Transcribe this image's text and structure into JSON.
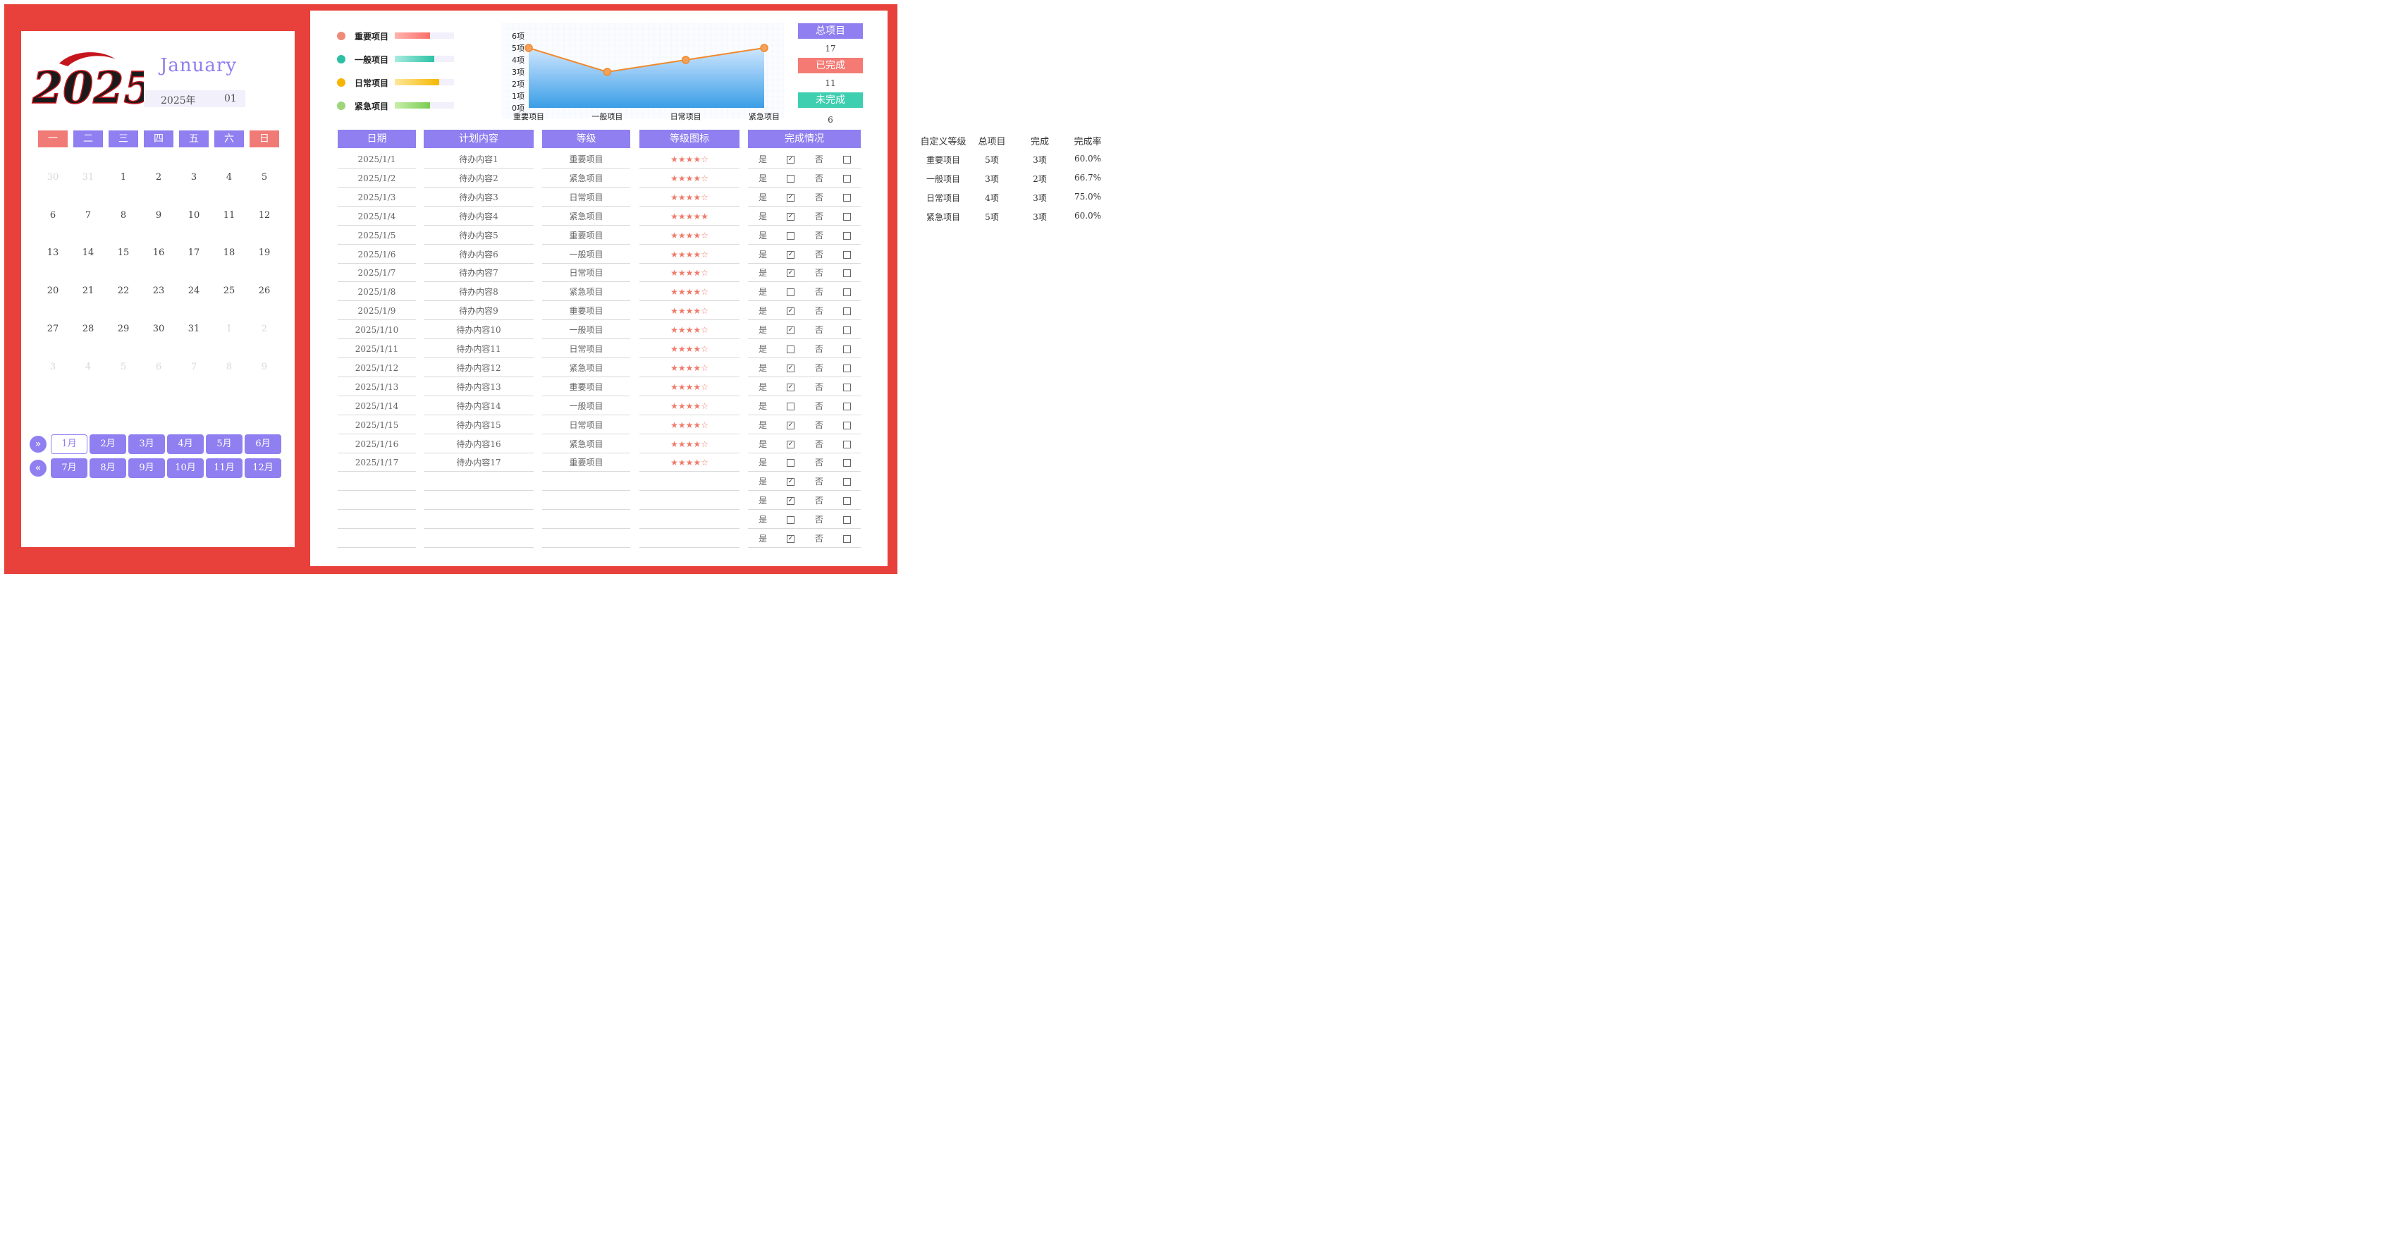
{
  "calendar": {
    "logo_text": "2025",
    "month_name": "January",
    "year_label": "2025年",
    "month_num": "01",
    "weekdays": [
      "一",
      "二",
      "三",
      "四",
      "五",
      "六",
      "日"
    ],
    "weeks": [
      [
        {
          "d": "30",
          "dim": true
        },
        {
          "d": "31",
          "dim": true
        },
        {
          "d": "1"
        },
        {
          "d": "2"
        },
        {
          "d": "3"
        },
        {
          "d": "4"
        },
        {
          "d": "5"
        }
      ],
      [
        {
          "d": "6"
        },
        {
          "d": "7"
        },
        {
          "d": "8"
        },
        {
          "d": "9"
        },
        {
          "d": "10"
        },
        {
          "d": "11"
        },
        {
          "d": "12"
        }
      ],
      [
        {
          "d": "13"
        },
        {
          "d": "14"
        },
        {
          "d": "15"
        },
        {
          "d": "16"
        },
        {
          "d": "17"
        },
        {
          "d": "18"
        },
        {
          "d": "19"
        }
      ],
      [
        {
          "d": "20"
        },
        {
          "d": "21"
        },
        {
          "d": "22"
        },
        {
          "d": "23"
        },
        {
          "d": "24"
        },
        {
          "d": "25"
        },
        {
          "d": "26"
        }
      ],
      [
        {
          "d": "27"
        },
        {
          "d": "28"
        },
        {
          "d": "29"
        },
        {
          "d": "30"
        },
        {
          "d": "31"
        },
        {
          "d": "1",
          "dim": true
        },
        {
          "d": "2",
          "dim": true
        }
      ],
      [
        {
          "d": "3",
          "dim": true
        },
        {
          "d": "4",
          "dim": true
        },
        {
          "d": "5",
          "dim": true
        },
        {
          "d": "6",
          "dim": true
        },
        {
          "d": "7",
          "dim": true
        },
        {
          "d": "8",
          "dim": true
        },
        {
          "d": "9",
          "dim": true
        }
      ]
    ],
    "months_row1": [
      "1月",
      "2月",
      "3月",
      "4月",
      "5月",
      "6月"
    ],
    "months_row2": [
      "7月",
      "8月",
      "9月",
      "10月",
      "11月",
      "12月"
    ],
    "active_month": "1月"
  },
  "legend": [
    {
      "label": "重要项目",
      "color": "#ef8a78",
      "bar_from": "#ffb3ad",
      "bar_to": "#fb6f6a",
      "fill": 0.6
    },
    {
      "label": "一般项目",
      "color": "#2bbfa4",
      "bar_from": "#a8ece0",
      "bar_to": "#2bc2a6",
      "fill": 0.667
    },
    {
      "label": "日常项目",
      "color": "#f7b500",
      "bar_from": "#ffe79a",
      "bar_to": "#f5b800",
      "fill": 0.75
    },
    {
      "label": "紧急项目",
      "color": "#9ed47a",
      "bar_from": "#c8efa9",
      "bar_to": "#7acb52",
      "fill": 0.6
    }
  ],
  "chart_data": {
    "type": "area",
    "categories": [
      "重要项目",
      "一般项目",
      "日常项目",
      "紧急项目"
    ],
    "y_tick_labels": [
      "0项",
      "1项",
      "2项",
      "3项",
      "4项",
      "5项",
      "6项"
    ],
    "ylim": [
      0,
      6
    ],
    "series": [
      {
        "values": [
          5,
          3,
          4,
          5
        ]
      }
    ],
    "grid": true
  },
  "summary": {
    "total_label": "总项目",
    "total_value": "17",
    "done_label": "已完成",
    "done_value": "11",
    "undone_label": "未完成",
    "undone_value": "6"
  },
  "table": {
    "headers": [
      "日期",
      "计划内容",
      "等级",
      "等级图标",
      "完成情况"
    ],
    "yes_label": "是",
    "no_label": "否",
    "rows": [
      {
        "date": "2025/1/1",
        "content": "待办内容1",
        "level": "重要项目",
        "stars": "★★★★☆",
        "yes": true
      },
      {
        "date": "2025/1/2",
        "content": "待办内容2",
        "level": "紧急项目",
        "stars": "★★★★☆",
        "yes": false
      },
      {
        "date": "2025/1/3",
        "content": "待办内容3",
        "level": "日常项目",
        "stars": "★★★★☆",
        "yes": true
      },
      {
        "date": "2025/1/4",
        "content": "待办内容4",
        "level": "紧急项目",
        "stars": "★★★★★",
        "yes": true
      },
      {
        "date": "2025/1/5",
        "content": "待办内容5",
        "level": "重要项目",
        "stars": "★★★★☆",
        "yes": false
      },
      {
        "date": "2025/1/6",
        "content": "待办内容6",
        "level": "一般项目",
        "stars": "★★★★☆",
        "yes": true
      },
      {
        "date": "2025/1/7",
        "content": "待办内容7",
        "level": "日常项目",
        "stars": "★★★★☆",
        "yes": true
      },
      {
        "date": "2025/1/8",
        "content": "待办内容8",
        "level": "紧急项目",
        "stars": "★★★★☆",
        "yes": false
      },
      {
        "date": "2025/1/9",
        "content": "待办内容9",
        "level": "重要项目",
        "stars": "★★★★☆",
        "yes": true
      },
      {
        "date": "2025/1/10",
        "content": "待办内容10",
        "level": "一般项目",
        "stars": "★★★★☆",
        "yes": true
      },
      {
        "date": "2025/1/11",
        "content": "待办内容11",
        "level": "日常项目",
        "stars": "★★★★☆",
        "yes": false
      },
      {
        "date": "2025/1/12",
        "content": "待办内容12",
        "level": "紧急项目",
        "stars": "★★★★☆",
        "yes": true
      },
      {
        "date": "2025/1/13",
        "content": "待办内容13",
        "level": "重要项目",
        "stars": "★★★★☆",
        "yes": true
      },
      {
        "date": "2025/1/14",
        "content": "待办内容14",
        "level": "一般项目",
        "stars": "★★★★☆",
        "yes": false
      },
      {
        "date": "2025/1/15",
        "content": "待办内容15",
        "level": "日常项目",
        "stars": "★★★★☆",
        "yes": true
      },
      {
        "date": "2025/1/16",
        "content": "待办内容16",
        "level": "紧急项目",
        "stars": "★★★★☆",
        "yes": true
      },
      {
        "date": "2025/1/17",
        "content": "待办内容17",
        "level": "重要项目",
        "stars": "★★★★☆",
        "yes": false
      },
      {
        "date": "",
        "content": "",
        "level": "",
        "stars": "",
        "yes": true
      },
      {
        "date": "",
        "content": "",
        "level": "",
        "stars": "",
        "yes": true
      },
      {
        "date": "",
        "content": "",
        "level": "",
        "stars": "",
        "yes": false
      },
      {
        "date": "",
        "content": "",
        "level": "",
        "stars": "",
        "yes": true
      }
    ]
  },
  "stats": {
    "headers": [
      "自定义等级",
      "总项目",
      "完成",
      "完成率"
    ],
    "rows": [
      [
        "重要项目",
        "5项",
        "3项",
        "60.0%"
      ],
      [
        "一般项目",
        "3项",
        "2项",
        "66.7%"
      ],
      [
        "日常项目",
        "4项",
        "3项",
        "75.0%"
      ],
      [
        "紧急项目",
        "5项",
        "3项",
        "60.0%"
      ]
    ]
  },
  "colors": {
    "accent": "#8f7ff0",
    "frame": "#e8403a",
    "weekend": "#f07a76",
    "done": "#f57a74",
    "undone": "#3ecfb0"
  }
}
